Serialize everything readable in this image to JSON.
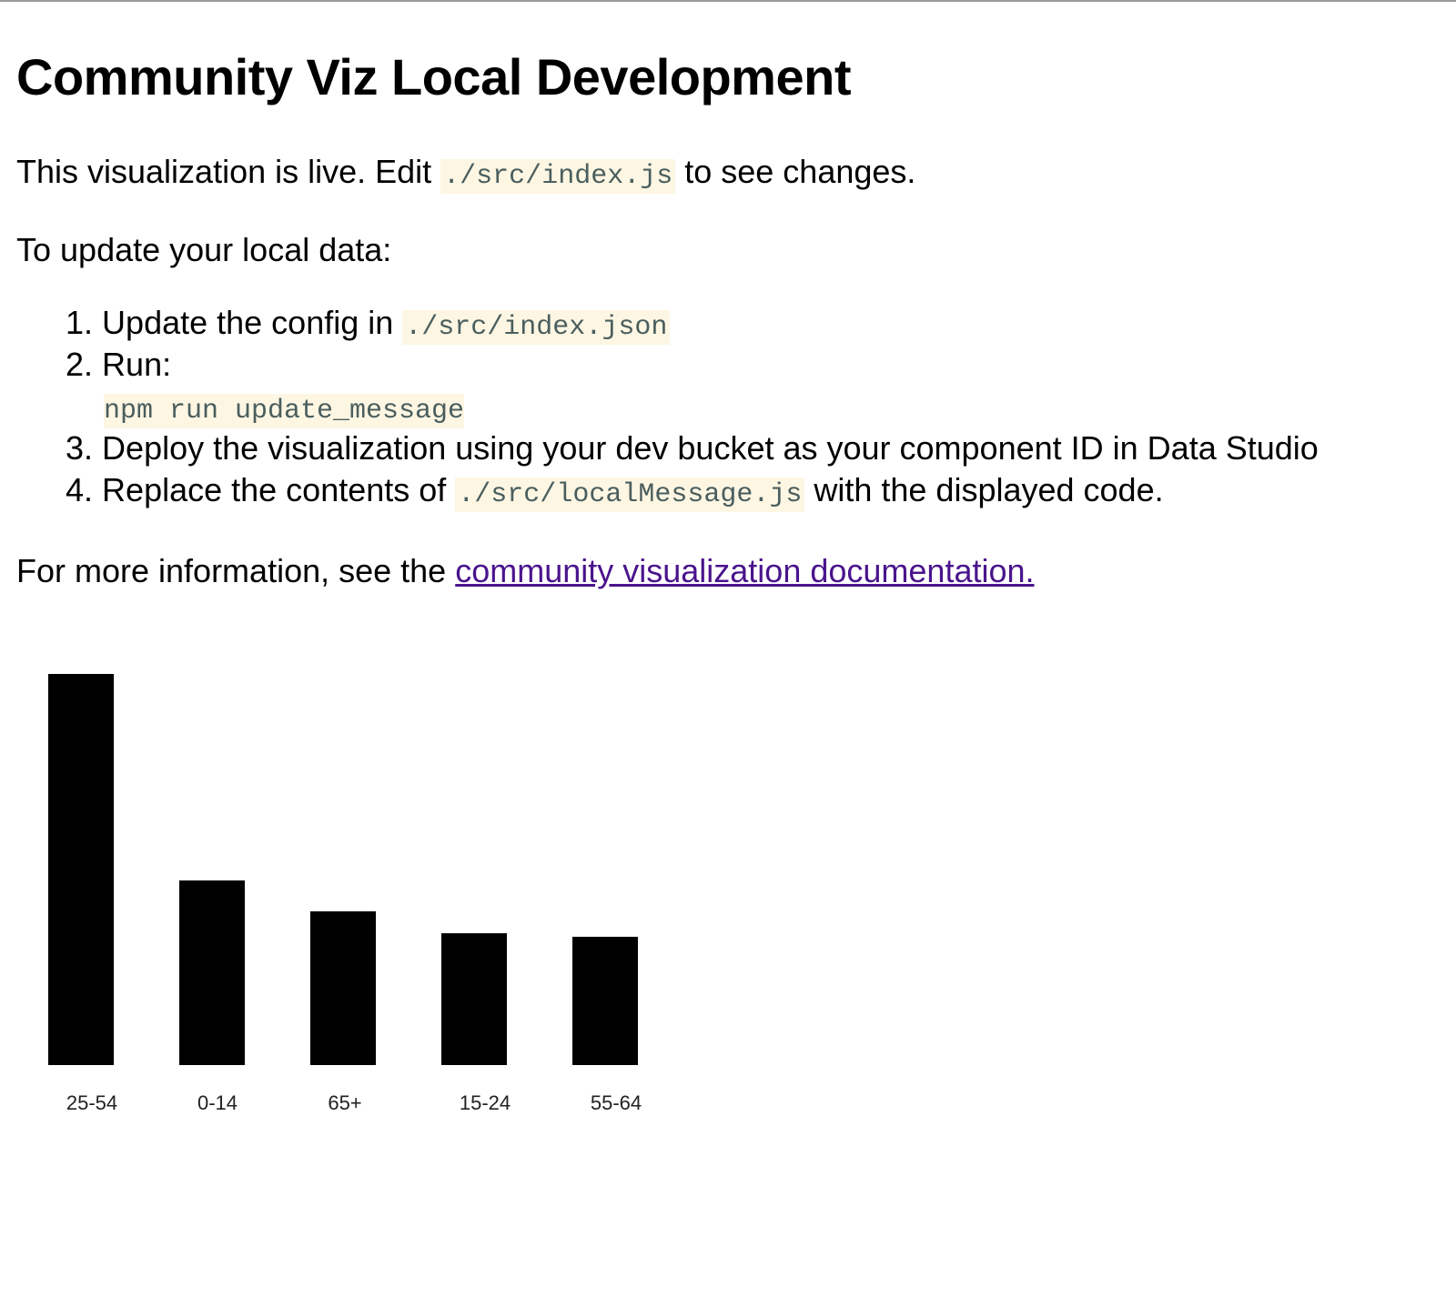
{
  "title": "Community Viz Local Development",
  "intro": {
    "before": "This visualization is live. Edit ",
    "code": "./src/index.js",
    "after": " to see changes."
  },
  "update_heading": "To update your local data:",
  "steps": [
    {
      "num": "1.",
      "text": "Update the config in ",
      "code": "./src/index.json"
    },
    {
      "num": "2.",
      "text": "Run:",
      "code": "npm run update_message"
    },
    {
      "num": "3.",
      "text": "Deploy the visualization using your dev bucket as your component ID in Data Studio"
    },
    {
      "num": "4.",
      "text": "Replace the contents of ",
      "code": "./src/localMessage.js",
      "after": " with the displayed code."
    }
  ],
  "more_info": {
    "before": "For more information, see the ",
    "link": "community visualization documentation."
  },
  "chart_data": {
    "type": "bar",
    "categories": [
      "25-54",
      "0-14",
      "65+",
      "15-24",
      "55-64"
    ],
    "values": [
      100,
      47.2,
      39.3,
      33.7,
      32.8
    ],
    "bar_color": "#000000",
    "grid": false,
    "legend": "none"
  }
}
